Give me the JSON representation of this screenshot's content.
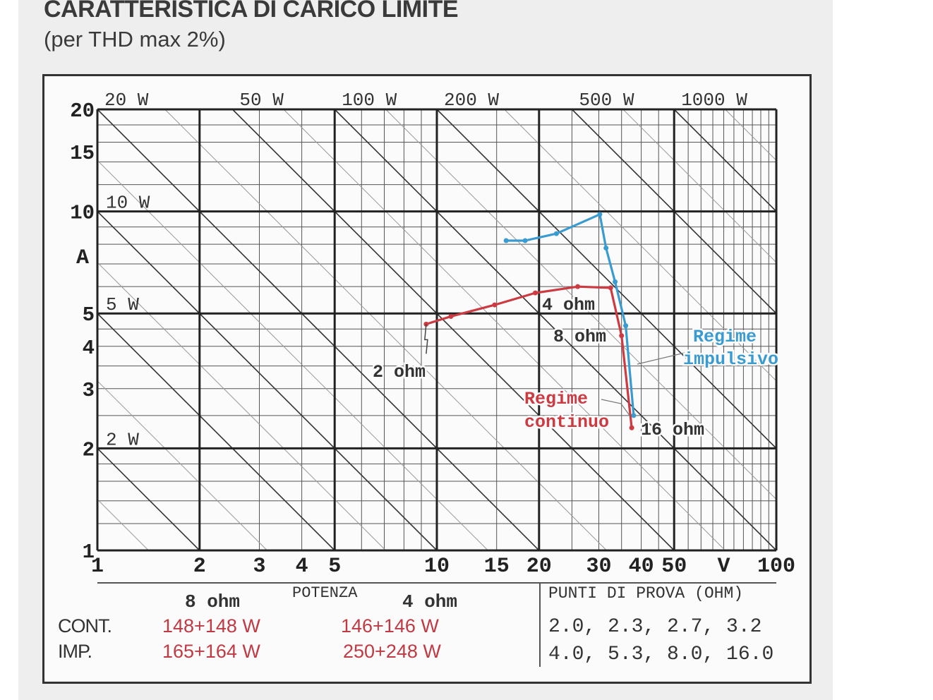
{
  "title": "CARATTERISTICA DI CARICO LIMITE",
  "subtitle": "(per THD max 2%)",
  "chart_data": {
    "type": "line",
    "xscale": "log",
    "yscale": "log",
    "xlim": [
      1,
      100
    ],
    "ylim": [
      1,
      20
    ],
    "xlabel": "V",
    "ylabel": "A",
    "x_ticks": [
      "1",
      "2",
      "3",
      "4",
      "5",
      "10",
      "15",
      "20",
      "30",
      "40",
      "50",
      "100"
    ],
    "y_ticks": [
      "1",
      "2",
      "3",
      "4",
      "5",
      "10",
      "15",
      "20"
    ],
    "power_lines_top": [
      "20 W",
      "50 W",
      "100 W",
      "200 W",
      "500 W",
      "1000 W"
    ],
    "power_lines_left": [
      "10 W",
      "5 W",
      "2 W"
    ],
    "series": [
      {
        "name": "Regime impulsivo",
        "color": "#3a9bd0",
        "points": [
          [
            16.0,
            8.2
          ],
          [
            18.2,
            8.2
          ],
          [
            22.5,
            8.6
          ],
          [
            30.2,
            9.8
          ],
          [
            31.5,
            7.8
          ],
          [
            33.5,
            6.2
          ],
          [
            36.0,
            4.6
          ],
          [
            38.0,
            2.5
          ]
        ]
      },
      {
        "name": "Regime continuo",
        "color": "#cc3a42",
        "points": [
          [
            9.3,
            4.65
          ],
          [
            11.0,
            4.9
          ],
          [
            14.8,
            5.3
          ],
          [
            19.5,
            5.75
          ],
          [
            26.0,
            6.0
          ],
          [
            32.5,
            5.95
          ],
          [
            35.0,
            4.3
          ],
          [
            37.5,
            2.3
          ]
        ]
      }
    ],
    "annotations": [
      {
        "text": "2 ohm",
        "x": 9.3,
        "y": 4.65
      },
      {
        "text": "4 ohm",
        "x": 19.5,
        "y": 5.75
      },
      {
        "text": "8 ohm",
        "x": 35.0,
        "y": 4.3
      },
      {
        "text": "16 ohm",
        "x": 37.5,
        "y": 2.3
      }
    ],
    "series_labels": [
      {
        "lines": [
          "Regime",
          "impulsivo"
        ],
        "color": "#3a9bd0"
      },
      {
        "lines": [
          "Regime",
          "continuo"
        ],
        "color": "#cc3a42"
      }
    ]
  },
  "table": {
    "power_header": "POTENZA",
    "col_8ohm": "8 ohm",
    "col_4ohm": "4 ohm",
    "rows": [
      {
        "label": "CONT.",
        "v8": "148+148 W",
        "v4": "146+146 W"
      },
      {
        "label": "IMP.",
        "v8": "165+164 W",
        "v4": "250+248 W"
      }
    ],
    "test_points_header": "PUNTI DI PROVA (OHM)",
    "test_points_line1": "2.0, 2.3, 2.7, 3.2",
    "test_points_line2": "4.0, 5.3, 8.0, 16.0"
  }
}
